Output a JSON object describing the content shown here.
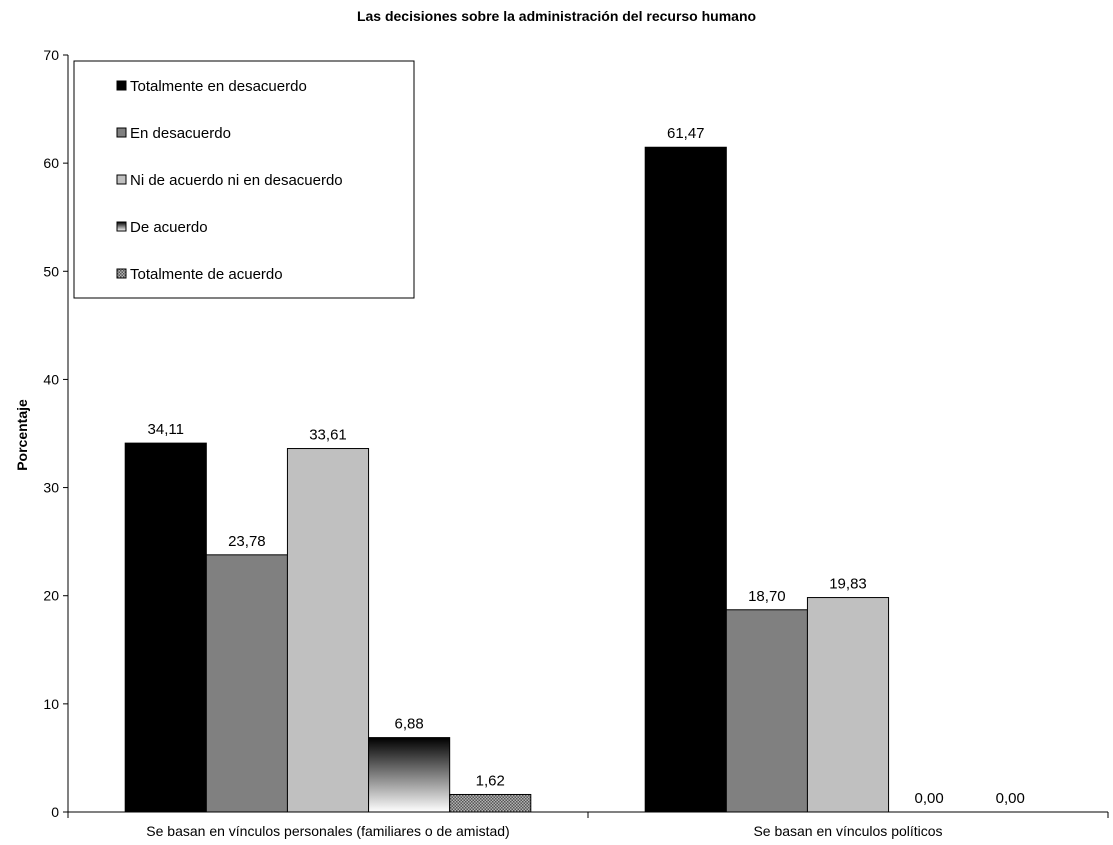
{
  "chart_data": {
    "type": "bar",
    "title": "Las decisiones sobre la administración del recurso humano",
    "xlabel": "",
    "ylabel": "Porcentaje",
    "ylim": [
      0,
      70
    ],
    "yticks": [
      "0",
      "10",
      "20",
      "30",
      "40",
      "50",
      "60",
      "70"
    ],
    "grid": false,
    "legend_position": "top-left",
    "categories": [
      "Se basan en vínculos personales (familiares o de amistad)",
      "Se basan en vínculos políticos"
    ],
    "series": [
      {
        "name": "Totalmente en desacuerdo",
        "values": [
          34.11,
          61.47
        ],
        "labels": [
          "34,11",
          "61,47"
        ],
        "color": "#000000",
        "pattern": "solid"
      },
      {
        "name": "En desacuerdo",
        "values": [
          23.78,
          18.7
        ],
        "labels": [
          "23,78",
          "18,70"
        ],
        "color": "#808080",
        "pattern": "solid"
      },
      {
        "name": "Ni de acuerdo ni en desacuerdo",
        "values": [
          33.61,
          19.83
        ],
        "labels": [
          "33,61",
          "19,83"
        ],
        "color": "#c0c0c0",
        "pattern": "solid"
      },
      {
        "name": "De acuerdo",
        "values": [
          6.88,
          0.0
        ],
        "labels": [
          "6,88",
          "0,00"
        ],
        "color": "#000000",
        "pattern": "gradient"
      },
      {
        "name": "Totalmente de acuerdo",
        "values": [
          1.62,
          0.0
        ],
        "labels": [
          "1,62",
          "0,00"
        ],
        "color": "#8c8c8c",
        "pattern": "dotted"
      }
    ]
  }
}
